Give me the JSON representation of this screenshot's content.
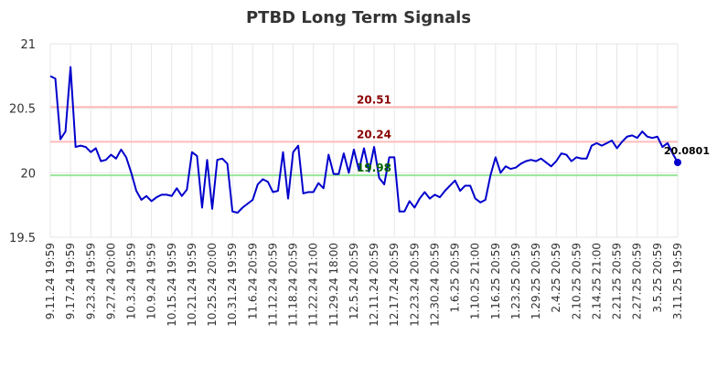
{
  "chart_data": {
    "type": "line",
    "title": "PTBD Long Term Signals",
    "ylim": [
      19.5,
      21
    ],
    "y_ticks": [
      "19.5",
      "20",
      "20.5",
      "21"
    ],
    "y_tick_values": [
      19.5,
      20,
      20.5,
      21
    ],
    "x_tick_labels": [
      "9.11.24 19:59",
      "9.17.24 19:59",
      "9.23.24 19:59",
      "9.27.24 20:00",
      "10.3.24 19:59",
      "10.9.24 19:59",
      "10.15.24 19:59",
      "10.21.24 19:59",
      "10.25.24 20:00",
      "10.31.24 19:59",
      "11.6.24 20:59",
      "11.12.24 20:59",
      "11.18.24 20:59",
      "11.22.24 21:00",
      "11.29.24 18:00",
      "12.5.24 20:59",
      "12.11.24 20:59",
      "12.17.24 20:59",
      "12.23.24 20:59",
      "12.30.24 20:59",
      "1.6.25 20:59",
      "1.10.25 21:00",
      "1.16.25 20:59",
      "1.23.25 20:59",
      "1.29.25 20:59",
      "2.4.25 20:59",
      "2.10.25 20:59",
      "2.14.25 21:00",
      "2.21.25 20:59",
      "2.27.25 20:59",
      "3.5.25 20:59",
      "3.11.25 19:59"
    ],
    "x_tick_index": [
      0,
      4,
      8,
      12,
      16,
      20,
      24,
      28,
      32,
      36,
      40,
      44,
      48,
      52,
      56,
      60,
      64,
      68,
      72,
      76,
      80,
      84,
      88,
      92,
      96,
      100,
      104,
      108,
      112,
      116,
      120,
      124
    ],
    "grid": true,
    "series": [
      {
        "color": "#0000cc",
        "values": [
          20.75,
          20.73,
          20.26,
          20.32,
          20.82,
          20.2,
          20.21,
          20.2,
          20.16,
          20.19,
          20.09,
          20.1,
          20.14,
          20.11,
          20.18,
          20.12,
          20.0,
          19.86,
          19.79,
          19.82,
          19.78,
          19.81,
          19.83,
          19.83,
          19.82,
          19.88,
          19.82,
          19.87,
          20.16,
          20.13,
          19.73,
          20.1,
          19.72,
          20.1,
          20.11,
          20.07,
          19.7,
          19.69,
          19.73,
          19.76,
          19.79,
          19.91,
          19.95,
          19.93,
          19.85,
          19.86,
          20.16,
          19.8,
          20.16,
          20.21,
          19.84,
          19.85,
          19.85,
          19.92,
          19.88,
          20.14,
          19.99,
          19.99,
          20.15,
          20.0,
          20.18,
          20.02,
          20.19,
          20.01,
          20.2,
          19.96,
          19.91,
          20.12,
          20.12,
          19.7,
          19.7,
          19.78,
          19.73,
          19.8,
          19.85,
          19.8,
          19.83,
          19.81,
          19.86,
          19.9,
          19.94,
          19.86,
          19.9,
          19.9,
          19.8,
          19.77,
          19.79,
          19.98,
          20.12,
          20.0,
          20.05,
          20.03,
          20.04,
          20.07,
          20.09,
          20.1,
          20.09,
          20.11,
          20.08,
          20.05,
          20.09,
          20.15,
          20.14,
          20.09,
          20.12,
          20.11,
          20.11,
          20.21,
          20.23,
          20.21,
          20.23,
          20.25,
          20.19,
          20.24,
          20.28,
          20.29,
          20.27,
          20.32,
          20.28,
          20.27,
          20.28,
          20.2,
          20.23,
          20.15,
          20.0801
        ]
      }
    ],
    "levels": [
      {
        "label": "20.51",
        "value": 20.51,
        "line_color": "#ffbbbb",
        "text_color": "#8b0000"
      },
      {
        "label": "20.24",
        "value": 20.24,
        "line_color": "#ffbbbb",
        "text_color": "#8b0000"
      },
      {
        "label": "19.98",
        "value": 19.98,
        "line_color": "#99e699",
        "text_color": "#006400"
      }
    ],
    "last_value_label": "20.0801"
  }
}
